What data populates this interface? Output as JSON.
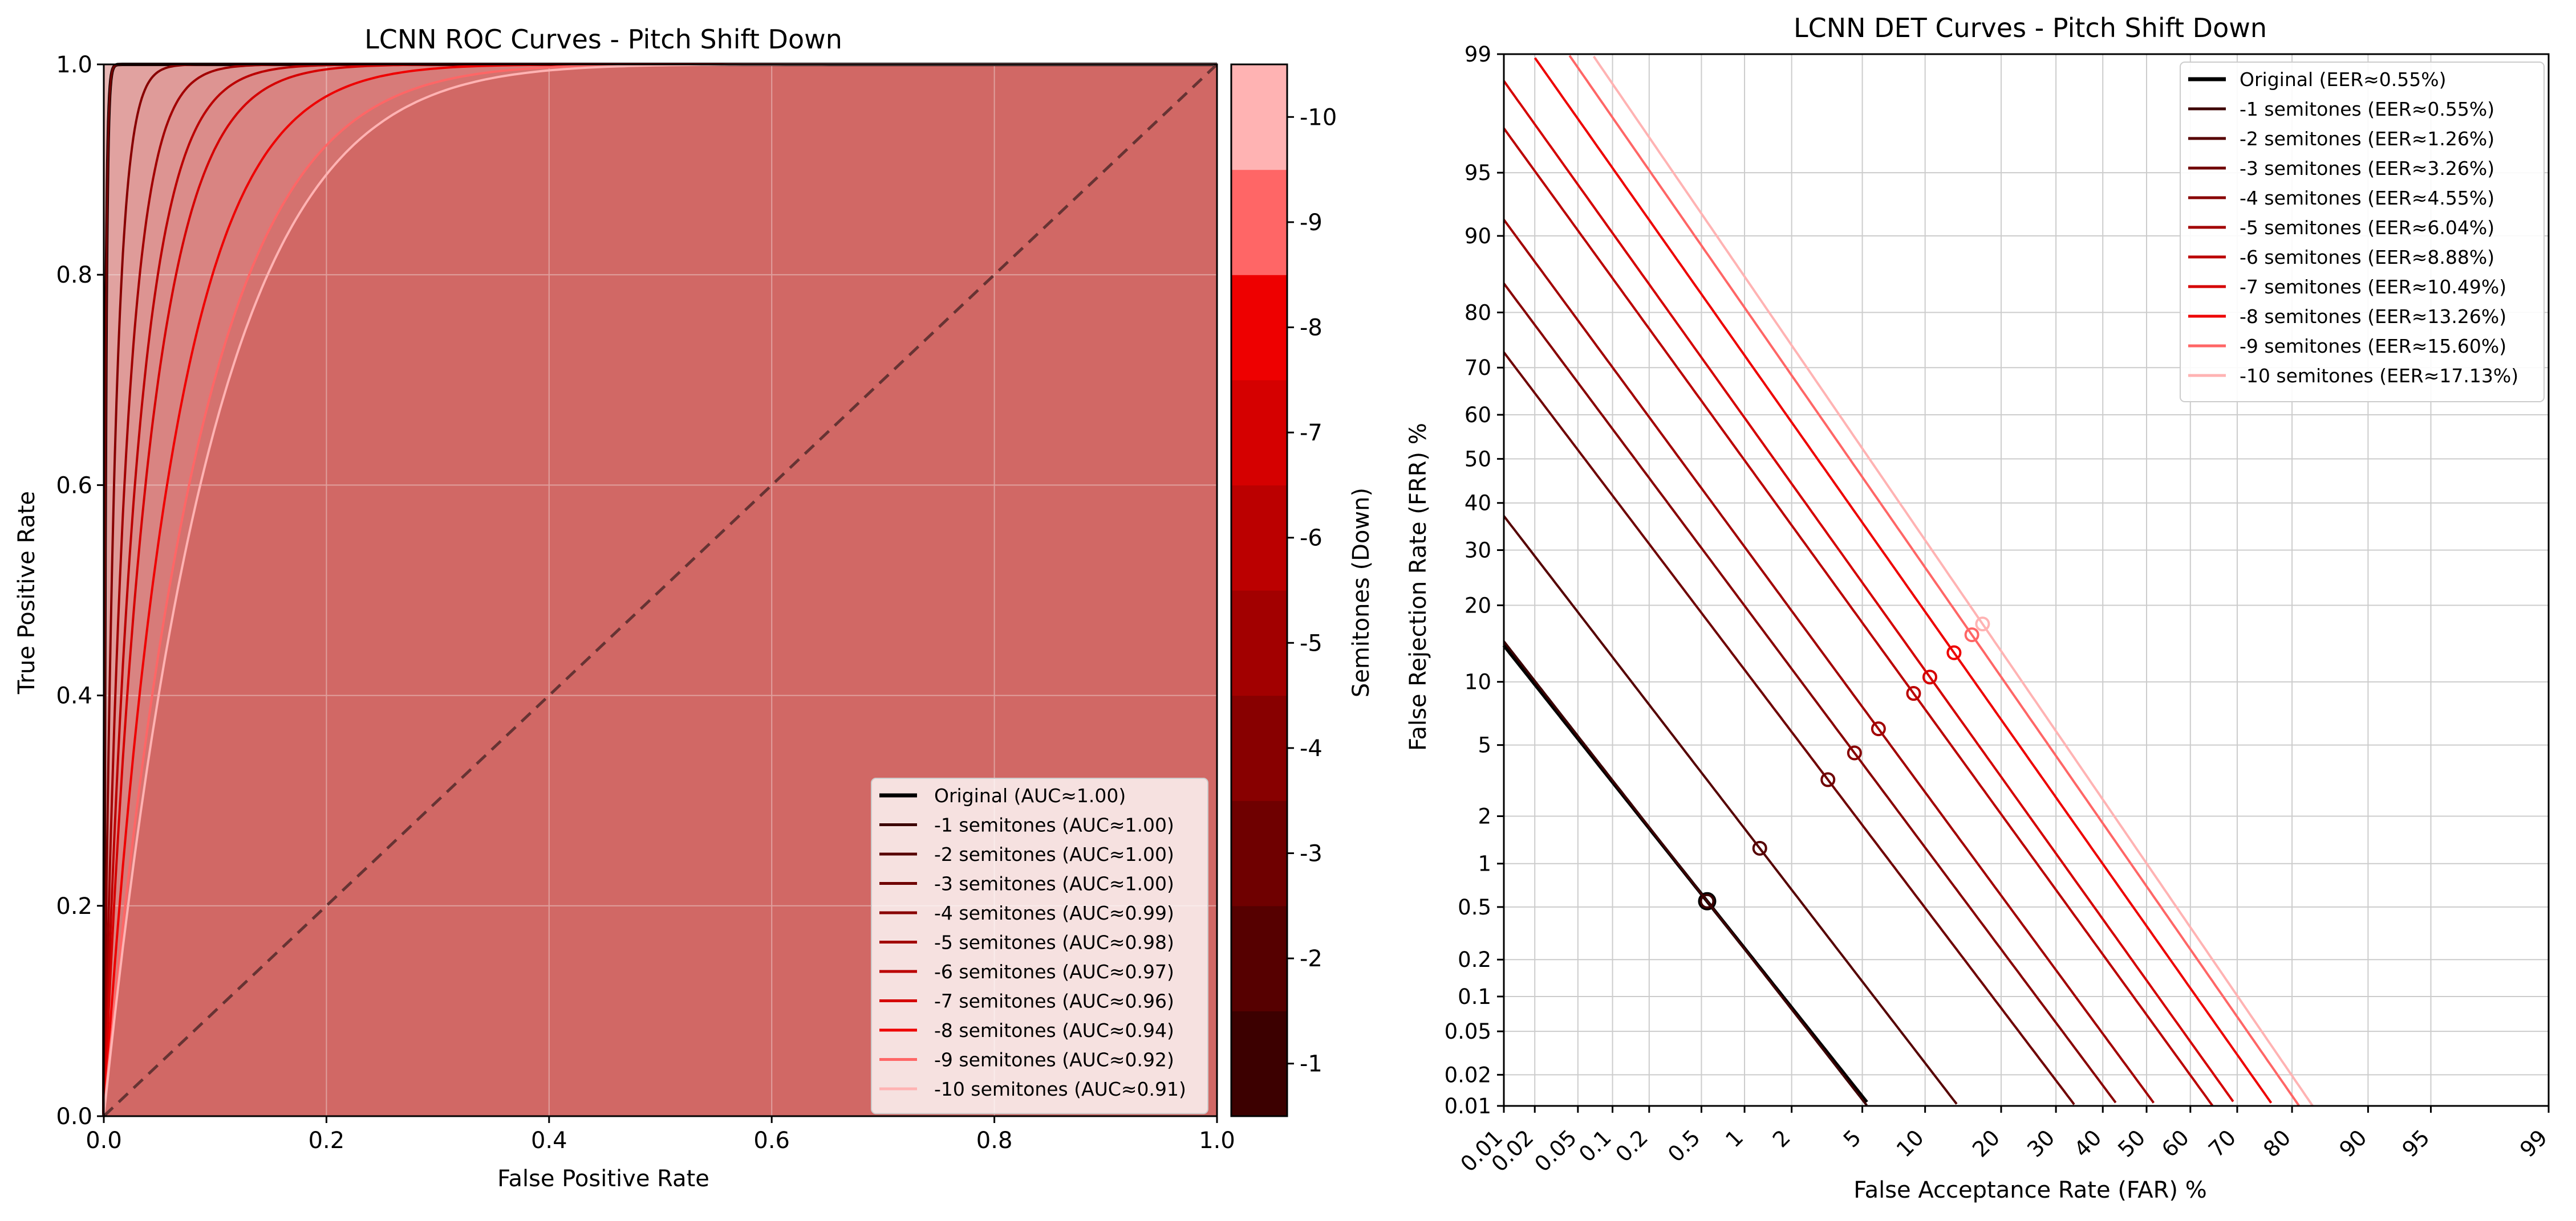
{
  "colors": {
    "background": "#ffffff",
    "roc_fill": "#d16865",
    "diagonal": "#663333",
    "original": "#000000",
    "semitone_colors": [
      "#3c0000",
      "#560000",
      "#6f0000",
      "#880000",
      "#a20000",
      "#bb0000",
      "#d50000",
      "#ee0000",
      "#ff6666",
      "#ffb3b3"
    ],
    "grid": "#cccccc"
  },
  "chart_data": [
    {
      "type": "line",
      "title": "LCNN ROC Curves - Pitch Shift Down",
      "xlabel": "False Positive Rate",
      "ylabel": "True Positive Rate",
      "xlim": [
        0,
        1
      ],
      "ylim": [
        0,
        1
      ],
      "xticks": [
        "0.0",
        "0.2",
        "0.4",
        "0.6",
        "0.8",
        "1.0"
      ],
      "yticks": [
        "0.0",
        "0.2",
        "0.4",
        "0.6",
        "0.8",
        "1.0"
      ],
      "grid": true,
      "legend_position": "bottom-right",
      "diagonal": {
        "style": "dashed",
        "from": [
          0,
          0
        ],
        "to": [
          1,
          1
        ]
      },
      "series": [
        {
          "name": "Original (AUC≈1.00)",
          "color": "#000000",
          "auc": 1.0
        },
        {
          "name": "-1 semitones (AUC≈1.00)",
          "color": "#3c0000",
          "auc": 1.0
        },
        {
          "name": "-2 semitones (AUC≈1.00)",
          "color": "#560000",
          "auc": 1.0
        },
        {
          "name": "-3 semitones (AUC≈1.00)",
          "color": "#6f0000",
          "auc": 1.0
        },
        {
          "name": "-4 semitones (AUC≈0.99)",
          "color": "#880000",
          "auc": 0.99
        },
        {
          "name": "-5 semitones (AUC≈0.98)",
          "color": "#a20000",
          "auc": 0.98
        },
        {
          "name": "-6 semitones (AUC≈0.97)",
          "color": "#bb0000",
          "auc": 0.97
        },
        {
          "name": "-7 semitones (AUC≈0.96)",
          "color": "#d50000",
          "auc": 0.96
        },
        {
          "name": "-8 semitones (AUC≈0.94)",
          "color": "#ee0000",
          "auc": 0.94
        },
        {
          "name": "-9 semitones (AUC≈0.92)",
          "color": "#ff6666",
          "auc": 0.92
        },
        {
          "name": "-10 semitones (AUC≈0.91)",
          "color": "#ffb3b3",
          "auc": 0.91
        }
      ],
      "colorbar": {
        "label": "Semitones (Down)",
        "ticks": [
          "-1",
          "-2",
          "-3",
          "-4",
          "-5",
          "-6",
          "-7",
          "-8",
          "-9",
          "-10"
        ],
        "colors": [
          "#3c0000",
          "#560000",
          "#6f0000",
          "#880000",
          "#a20000",
          "#bb0000",
          "#d50000",
          "#ee0000",
          "#ff6666",
          "#ffb3b3"
        ]
      }
    },
    {
      "type": "line",
      "title": "LCNN DET Curves - Pitch Shift Down",
      "xlabel": "False Acceptance Rate (FAR) %",
      "ylabel": "False Rejection Rate (FRR) %",
      "scale": "normal-deviate",
      "xticks": [
        "0.01",
        "0.02",
        "0.05",
        "0.1",
        "0.2",
        "0.5",
        "1",
        "2",
        "5",
        "10",
        "20",
        "30",
        "40",
        "50",
        "60",
        "70",
        "80",
        "90",
        "95",
        "99"
      ],
      "yticks": [
        "0.01",
        "0.02",
        "0.05",
        "0.1",
        "0.2",
        "0.5",
        "1",
        "2",
        "5",
        "10",
        "20",
        "30",
        "40",
        "50",
        "60",
        "70",
        "80",
        "90",
        "95",
        "99"
      ],
      "grid": true,
      "legend_position": "top-right",
      "series": [
        {
          "name": "Original (EER≈0.55%)",
          "color": "#000000",
          "eer": 0.55
        },
        {
          "name": "-1 semitones (EER≈0.55%)",
          "color": "#3c0000",
          "eer": 0.55
        },
        {
          "name": "-2 semitones (EER≈1.26%)",
          "color": "#560000",
          "eer": 1.26
        },
        {
          "name": "-3 semitones (EER≈3.26%)",
          "color": "#6f0000",
          "eer": 3.26
        },
        {
          "name": "-4 semitones (EER≈4.55%)",
          "color": "#880000",
          "eer": 4.55
        },
        {
          "name": "-5 semitones (EER≈6.04%)",
          "color": "#a20000",
          "eer": 6.04
        },
        {
          "name": "-6 semitones (EER≈8.88%)",
          "color": "#bb0000",
          "eer": 8.88
        },
        {
          "name": "-7 semitones (EER≈10.49%)",
          "color": "#d50000",
          "eer": 10.49
        },
        {
          "name": "-8 semitones (EER≈13.26%)",
          "color": "#ee0000",
          "eer": 13.26
        },
        {
          "name": "-9 semitones (EER≈15.60%)",
          "color": "#ff6666",
          "eer": 15.6
        },
        {
          "name": "-10 semitones (EER≈17.13%)",
          "color": "#ffb3b3",
          "eer": 17.13
        }
      ]
    }
  ]
}
